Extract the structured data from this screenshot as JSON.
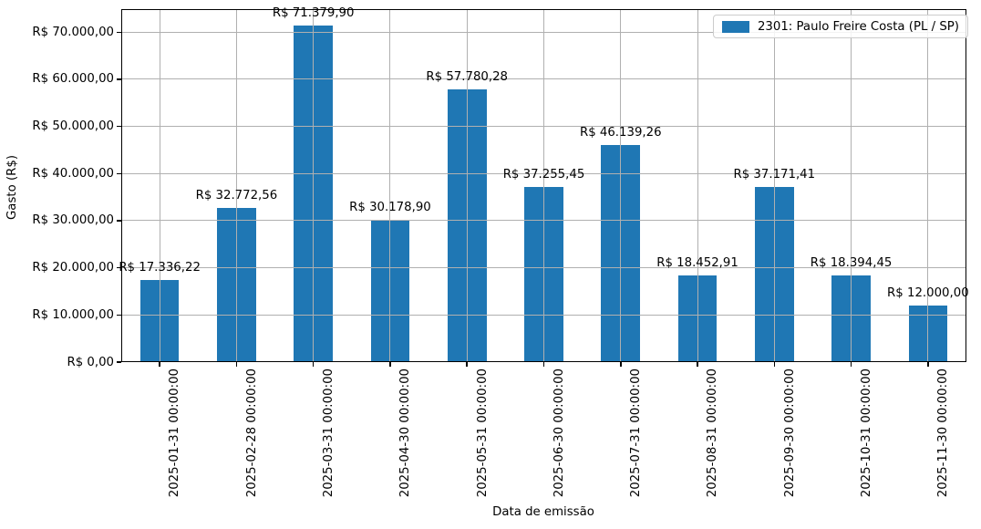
{
  "chart_data": {
    "type": "bar",
    "title": "",
    "xlabel": "Data de emissão",
    "ylabel": "Gasto (R$)",
    "categories": [
      "2025-01-31 00:00:00",
      "2025-02-28 00:00:00",
      "2025-03-31 00:00:00",
      "2025-04-30 00:00:00",
      "2025-05-31 00:00:00",
      "2025-06-30 00:00:00",
      "2025-07-31 00:00:00",
      "2025-08-31 00:00:00",
      "2025-09-30 00:00:00",
      "2025-10-31 00:00:00",
      "2025-11-30 00:00:00"
    ],
    "values": [
      17336.22,
      32772.56,
      71379.9,
      30178.9,
      57780.28,
      37255.45,
      46139.26,
      18452.91,
      37171.41,
      18394.45,
      12000.0
    ],
    "bar_labels": [
      "R$ 17.336,22",
      "R$ 32.772,56",
      "R$ 71.379,90",
      "R$ 30.178,90",
      "R$ 57.780,28",
      "R$ 37.255,45",
      "R$ 46.139,26",
      "R$ 18.452,91",
      "R$ 37.171,41",
      "R$ 18.394,45",
      "R$ 12.000,00"
    ],
    "ytick_values": [
      0,
      10000,
      20000,
      30000,
      40000,
      50000,
      60000,
      70000
    ],
    "ytick_labels": [
      "R$ 0,00",
      "R$ 10.000,00",
      "R$ 20.000,00",
      "R$ 30.000,00",
      "R$ 40.000,00",
      "R$ 50.000,00",
      "R$ 60.000,00",
      "R$ 70.000,00"
    ],
    "ylim": [
      0,
      74900
    ],
    "grid": true,
    "grid_color": "#b0b0b0",
    "bar_color": "#1f77b4",
    "legend": {
      "position": "upper right",
      "entries": [
        {
          "label": "2301: Paulo Freire Costa (PL / SP)",
          "color": "#1f77b4"
        }
      ]
    }
  }
}
